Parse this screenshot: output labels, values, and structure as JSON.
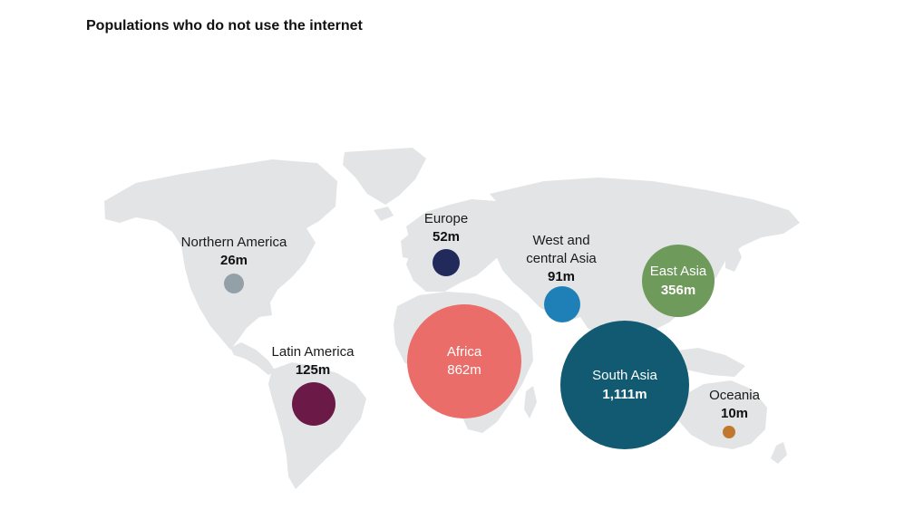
{
  "title": "Populations who do not use the internet",
  "regions": [
    {
      "id": "northern-america",
      "label": "Northern America",
      "label_lines": [
        "Northern America"
      ],
      "value": "26m",
      "value_millions": 26,
      "color": "#93a0a8"
    },
    {
      "id": "latin-america",
      "label": "Latin America",
      "label_lines": [
        "Latin America"
      ],
      "value": "125m",
      "value_millions": 125,
      "color": "#6b1a47"
    },
    {
      "id": "europe",
      "label": "Europe",
      "label_lines": [
        "Europe"
      ],
      "value": "52m",
      "value_millions": 52,
      "color": "#222a5c"
    },
    {
      "id": "africa",
      "label": "Africa",
      "label_lines": [
        "Africa"
      ],
      "value": "862m",
      "value_millions": 862,
      "color": "#ea6d6a"
    },
    {
      "id": "west-central-asia",
      "label": "West and central Asia",
      "label_lines": [
        "West and",
        "central Asia"
      ],
      "value": "91m",
      "value_millions": 91,
      "color": "#1f80b8"
    },
    {
      "id": "east-asia",
      "label": "East Asia",
      "label_lines": [
        "East Asia"
      ],
      "value": "356m",
      "value_millions": 356,
      "color": "#6e9a5b"
    },
    {
      "id": "south-asia",
      "label": "South Asia",
      "label_lines": [
        "South Asia"
      ],
      "value": "1,111m",
      "value_millions": 1111,
      "color": "#115a72"
    },
    {
      "id": "oceania",
      "label": "Oceania",
      "label_lines": [
        "Oceania"
      ],
      "value": "10m",
      "value_millions": 10,
      "color": "#c0782e"
    }
  ],
  "colors": {
    "land": "#e3e4e5",
    "text": "#1a1a1a"
  }
}
